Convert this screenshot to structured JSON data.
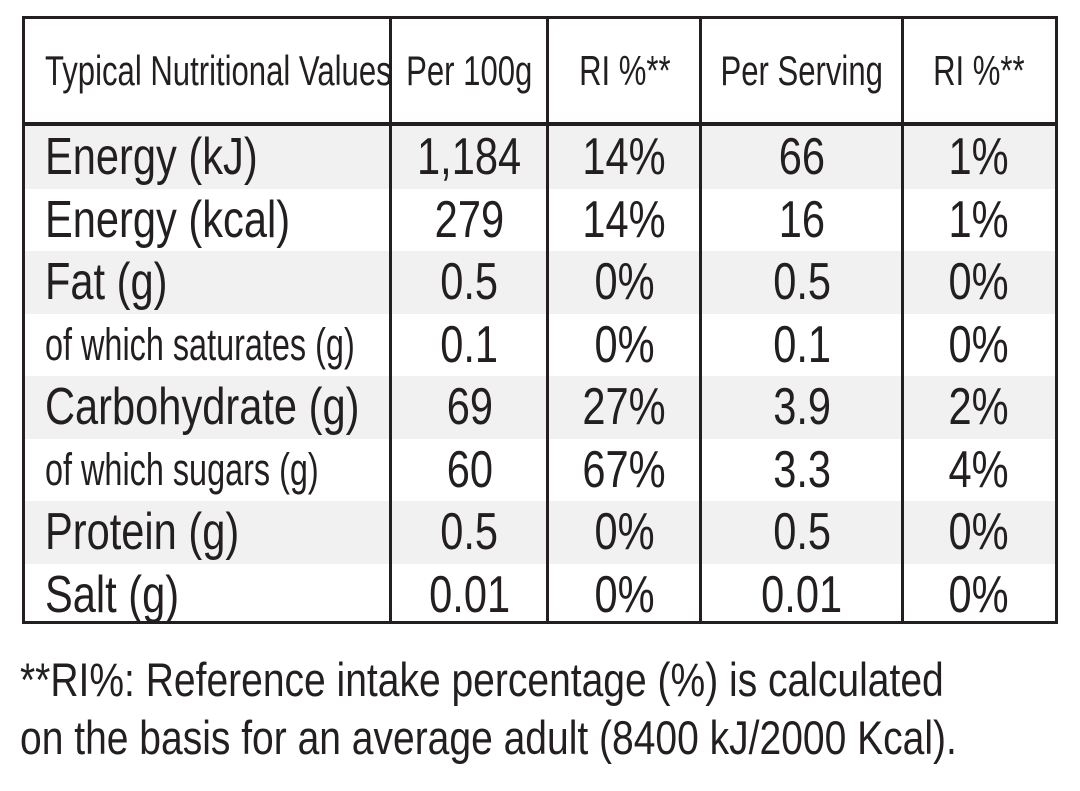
{
  "table": {
    "header": [
      "Typical Nutritional Values",
      "Per 100g",
      "RI %**",
      "Per Serving",
      "RI %**"
    ],
    "rows": [
      [
        "Energy (kJ)",
        "1,184",
        "14%",
        "66",
        "1%"
      ],
      [
        "Energy (kcal)",
        "279",
        "14%",
        "16",
        "1%"
      ],
      [
        "Fat (g)",
        "0.5",
        "0%",
        "0.5",
        "0%"
      ],
      [
        "of which saturates (g)",
        "0.1",
        "0%",
        "0.1",
        "0%"
      ],
      [
        "Carbohydrate (g)",
        "69",
        "27%",
        "3.9",
        "2%"
      ],
      [
        "of which sugars (g)",
        "60",
        "67%",
        "3.3",
        "4%"
      ],
      [
        "Protein (g)",
        "0.5",
        "0%",
        "0.5",
        "0%"
      ],
      [
        "Salt (g)",
        "0.01",
        "0%",
        "0.01",
        "0%"
      ]
    ]
  },
  "footnote": [
    "**RI%: Reference intake percentage (%) is calculated",
    "on the basis for an average adult (8400 kJ/2000 Kcal)."
  ]
}
